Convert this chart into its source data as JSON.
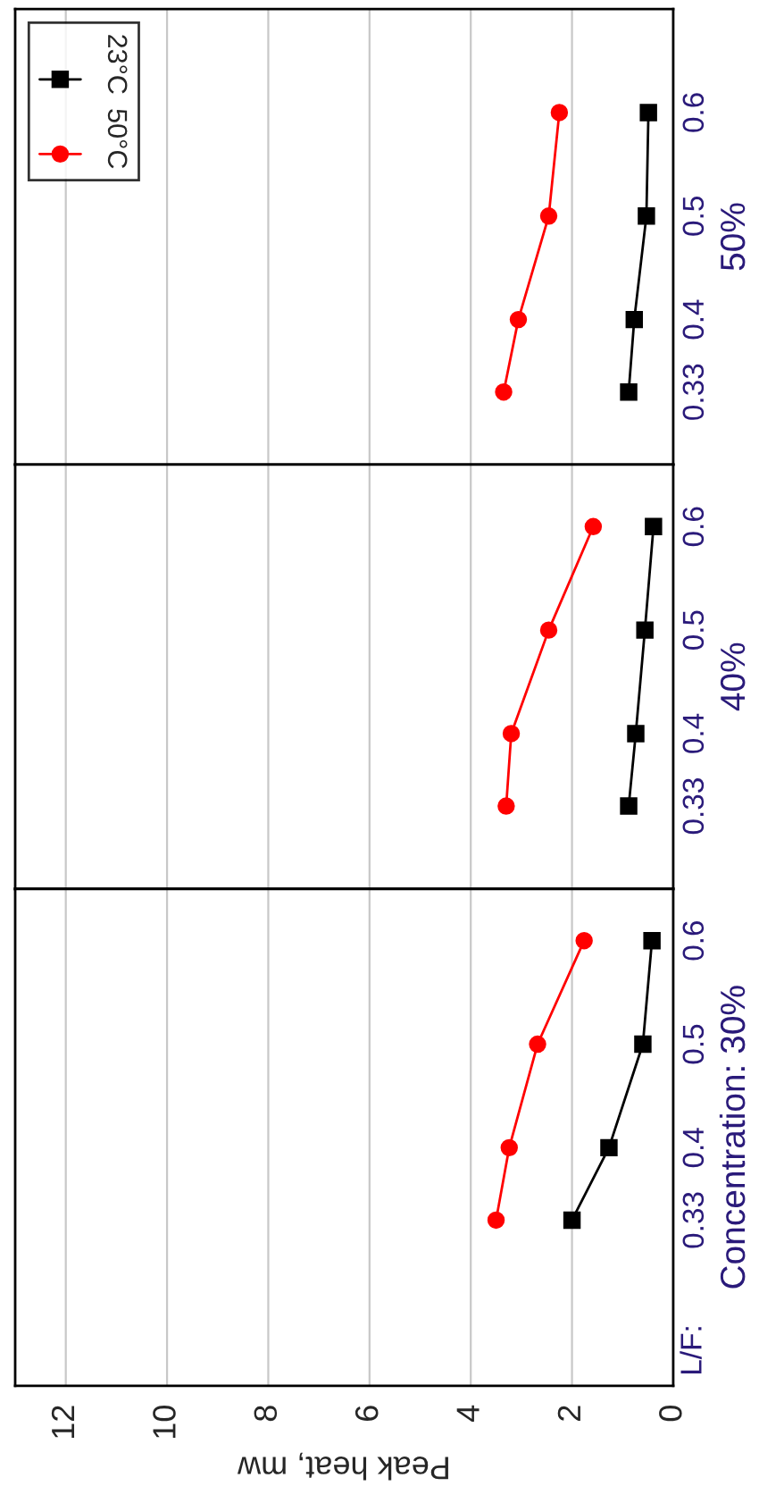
{
  "chart_data": [
    {
      "type": "line",
      "xlim": [
        13,
        0
      ],
      "xticks": [
        0,
        2,
        4,
        6,
        8,
        10,
        12
      ],
      "ylim": [
        0.17,
        0.65
      ],
      "yticks": [
        0.33,
        0.4,
        0.5,
        0.6
      ],
      "grid": "x",
      "ylabel": "Concentration: 30%",
      "xlabel": "Peak heat, mw",
      "annotations": [
        "L/F:"
      ],
      "series": [
        {
          "color": "#000000",
          "marker": "square",
          "x": [
            2.0,
            1.27,
            0.6,
            0.42
          ],
          "values": [
            0.33,
            0.4,
            0.5,
            0.6
          ]
        },
        {
          "color": "#ff0000",
          "marker": "circle",
          "x": [
            3.5,
            3.24,
            2.68,
            1.76
          ],
          "values": [
            0.33,
            0.4,
            0.5,
            0.6
          ]
        }
      ]
    },
    {
      "type": "line",
      "xlim": [
        13,
        0
      ],
      "xticks": [
        0,
        2,
        4,
        6,
        8,
        10,
        12
      ],
      "ylim": [
        0.25,
        0.66
      ],
      "yticks": [
        0.33,
        0.4,
        0.5,
        0.6
      ],
      "grid": "x",
      "ylabel": "40%",
      "tick_labels": "y",
      "series": [
        {
          "color": "#000000",
          "marker": "square",
          "x": [
            0.88,
            0.74,
            0.56,
            0.39
          ],
          "values": [
            0.33,
            0.4,
            0.5,
            0.6
          ]
        },
        {
          "color": "#ff0000",
          "marker": "circle",
          "x": [
            3.3,
            3.2,
            2.46,
            1.58
          ],
          "values": [
            0.33,
            0.4,
            0.5,
            0.6
          ]
        }
      ]
    },
    {
      "type": "line",
      "xlim": [
        13,
        0
      ],
      "xticks": [
        0,
        2,
        4,
        6,
        8,
        10,
        12
      ],
      "ylim": [
        0.26,
        0.7
      ],
      "yticks": [
        0.33,
        0.4,
        0.5,
        0.6
      ],
      "grid": "x",
      "ylabel": "50%",
      "tick_labels": "y",
      "legend": "top left",
      "series": [
        {
          "name": "23°C",
          "color": "#000000",
          "marker": "square",
          "x": [
            0.88,
            0.77,
            0.53,
            0.49
          ],
          "values": [
            0.33,
            0.4,
            0.5,
            0.6
          ]
        },
        {
          "name": "50°C",
          "color": "#ff0000",
          "marker": "circle",
          "x": [
            3.35,
            3.06,
            2.46,
            2.25
          ],
          "values": [
            0.33,
            0.4,
            0.5,
            0.6
          ]
        }
      ]
    }
  ]
}
